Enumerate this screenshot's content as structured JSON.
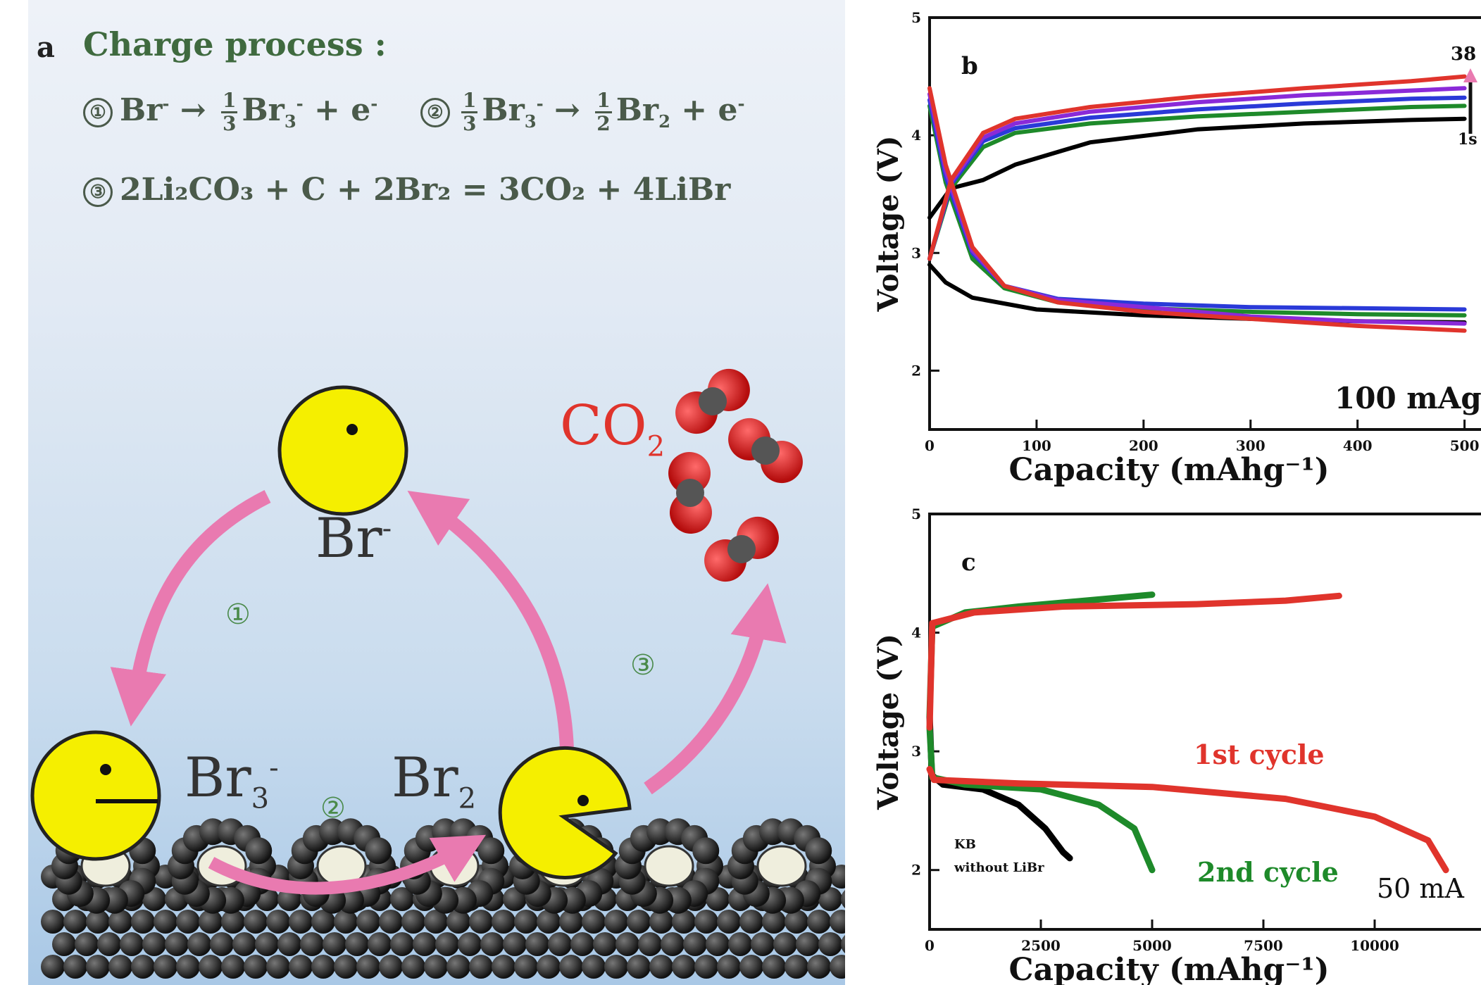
{
  "panel_a": {
    "letter": "a",
    "title": "Charge process :",
    "eq1_circle": "①",
    "eq1_lhs": "Br",
    "eq1_lhs_sup": "-",
    "eq1_arrow": "→",
    "eq1_frac_num": "1",
    "eq1_frac_den": "3",
    "eq1_prod": "Br",
    "eq1_prod_sub": "3",
    "eq1_prod_sup": "-",
    "eq1_plus": "+",
    "eq1_e": "e",
    "eq1_e_sup": "-",
    "eq2_circle": "②",
    "eq2_frac1_num": "1",
    "eq2_frac1_den": "3",
    "eq2_lhs": "Br",
    "eq2_lhs_sub": "3",
    "eq2_lhs_sup": "-",
    "eq2_arrow": "→",
    "eq2_frac2_num": "1",
    "eq2_frac2_den": "2",
    "eq2_prod": "Br",
    "eq2_prod_sub": "2",
    "eq2_plus": "+",
    "eq2_e": "e",
    "eq2_e_sup": "-",
    "eq3_circle": "③",
    "eq3_text": "2Li₂CO₃ + C + 2Br₂ = 3CO₂ + 4LiBr",
    "label_br": "Br",
    "label_br_sup": "-",
    "label_br3": "Br",
    "label_br3_sub": "3",
    "label_br3_sup": "-",
    "label_br2": "Br",
    "label_br2_sub": "2",
    "label_co2": "CO",
    "label_co2_sub": "2",
    "step1": "①",
    "step2": "②",
    "step3": "③",
    "colors": {
      "pacman": "#f5ef00",
      "arrow": "#e97ab0",
      "co2_label": "#e0342c",
      "step": "#4a8a4a"
    }
  },
  "chart_data": [
    {
      "panel": "b",
      "type": "line",
      "xlabel": "Capacity (mAhg⁻¹)",
      "ylabel": "Voltage (V)",
      "xlim": [
        0,
        520
      ],
      "ylim": [
        1.5,
        5
      ],
      "xticks": [
        "0",
        "100",
        "200",
        "300",
        "400",
        "500"
      ],
      "yticks": [
        "2",
        "3",
        "4",
        "5"
      ],
      "annotation": "100 mAg",
      "legend_top": "38",
      "legend_bottom": "1s",
      "series": [
        {
          "color": "#000000",
          "charge": [
            [
              0,
              3.3
            ],
            [
              20,
              3.55
            ],
            [
              50,
              3.62
            ],
            [
              80,
              3.75
            ],
            [
              150,
              3.94
            ],
            [
              250,
              4.05
            ],
            [
              350,
              4.1
            ],
            [
              450,
              4.13
            ],
            [
              500,
              4.14
            ]
          ],
          "discharge": [
            [
              0,
              2.9
            ],
            [
              15,
              2.75
            ],
            [
              40,
              2.62
            ],
            [
              100,
              2.52
            ],
            [
              200,
              2.47
            ],
            [
              300,
              2.44
            ],
            [
              400,
              2.42
            ],
            [
              500,
              2.41
            ]
          ]
        },
        {
          "color": "#1e8a2a",
          "charge": [
            [
              0,
              2.95
            ],
            [
              20,
              3.55
            ],
            [
              50,
              3.9
            ],
            [
              80,
              4.02
            ],
            [
              150,
              4.1
            ],
            [
              250,
              4.16
            ],
            [
              350,
              4.2
            ],
            [
              450,
              4.24
            ],
            [
              500,
              4.25
            ]
          ],
          "discharge": [
            [
              0,
              4.25
            ],
            [
              15,
              3.6
            ],
            [
              40,
              2.95
            ],
            [
              70,
              2.7
            ],
            [
              120,
              2.58
            ],
            [
              200,
              2.53
            ],
            [
              300,
              2.5
            ],
            [
              400,
              2.48
            ],
            [
              500,
              2.47
            ]
          ]
        },
        {
          "color": "#2a3ad8",
          "charge": [
            [
              0,
              2.95
            ],
            [
              20,
              3.58
            ],
            [
              50,
              3.95
            ],
            [
              80,
              4.06
            ],
            [
              150,
              4.15
            ],
            [
              250,
              4.22
            ],
            [
              350,
              4.27
            ],
            [
              450,
              4.31
            ],
            [
              500,
              4.32
            ]
          ],
          "discharge": [
            [
              0,
              4.3
            ],
            [
              15,
              3.65
            ],
            [
              40,
              3.0
            ],
            [
              70,
              2.72
            ],
            [
              120,
              2.61
            ],
            [
              200,
              2.57
            ],
            [
              300,
              2.54
            ],
            [
              400,
              2.53
            ],
            [
              500,
              2.52
            ]
          ]
        },
        {
          "color": "#8a2ad8",
          "charge": [
            [
              0,
              2.95
            ],
            [
              20,
              3.6
            ],
            [
              50,
              3.98
            ],
            [
              80,
              4.1
            ],
            [
              150,
              4.2
            ],
            [
              250,
              4.28
            ],
            [
              350,
              4.34
            ],
            [
              450,
              4.38
            ],
            [
              500,
              4.4
            ]
          ],
          "discharge": [
            [
              0,
              4.35
            ],
            [
              15,
              3.7
            ],
            [
              40,
              3.02
            ],
            [
              70,
              2.72
            ],
            [
              120,
              2.6
            ],
            [
              200,
              2.54
            ],
            [
              300,
              2.46
            ],
            [
              400,
              2.42
            ],
            [
              500,
              2.4
            ]
          ]
        },
        {
          "color": "#e0342c",
          "charge": [
            [
              0,
              2.95
            ],
            [
              20,
              3.62
            ],
            [
              50,
              4.02
            ],
            [
              80,
              4.14
            ],
            [
              150,
              4.24
            ],
            [
              250,
              4.33
            ],
            [
              350,
              4.4
            ],
            [
              450,
              4.46
            ],
            [
              500,
              4.5
            ]
          ],
          "discharge": [
            [
              0,
              4.4
            ],
            [
              15,
              3.75
            ],
            [
              40,
              3.05
            ],
            [
              70,
              2.72
            ],
            [
              120,
              2.58
            ],
            [
              200,
              2.5
            ],
            [
              300,
              2.44
            ],
            [
              400,
              2.38
            ],
            [
              500,
              2.34
            ]
          ]
        }
      ]
    },
    {
      "panel": "c",
      "type": "line",
      "xlabel": "Capacity (mAhg⁻¹)",
      "ylabel": "Voltage (V)",
      "xlim": [
        0,
        12500
      ],
      "ylim": [
        1.5,
        5
      ],
      "xticks": [
        "0",
        "2500",
        "5000",
        "7500",
        "10000"
      ],
      "yticks": [
        "2",
        "3",
        "4",
        "5"
      ],
      "annotation": "50 mA",
      "series": [
        {
          "name": "KB without LiBr",
          "color": "#000000",
          "discharge": [
            [
              0,
              3.3
            ],
            [
              50,
              2.8
            ],
            [
              300,
              2.72
            ],
            [
              1200,
              2.68
            ],
            [
              2000,
              2.55
            ],
            [
              2600,
              2.35
            ],
            [
              3000,
              2.15
            ],
            [
              3150,
              2.1
            ]
          ]
        },
        {
          "name": "2nd cycle",
          "color": "#1e8a2a",
          "charge": [
            [
              0,
              3.3
            ],
            [
              60,
              4.05
            ],
            [
              800,
              4.17
            ],
            [
              2000,
              4.22
            ],
            [
              3500,
              4.27
            ],
            [
              5000,
              4.32
            ]
          ],
          "discharge": [
            [
              0,
              3.2
            ],
            [
              60,
              2.78
            ],
            [
              800,
              2.72
            ],
            [
              2500,
              2.68
            ],
            [
              3800,
              2.55
            ],
            [
              4600,
              2.35
            ],
            [
              5000,
              2.0
            ]
          ]
        },
        {
          "name": "1st cycle",
          "color": "#e0342c",
          "charge": [
            [
              0,
              3.2
            ],
            [
              60,
              4.08
            ],
            [
              1000,
              4.17
            ],
            [
              3000,
              4.22
            ],
            [
              6000,
              4.24
            ],
            [
              8000,
              4.27
            ],
            [
              9200,
              4.31
            ]
          ],
          "discharge": [
            [
              0,
              2.85
            ],
            [
              100,
              2.76
            ],
            [
              2000,
              2.73
            ],
            [
              5000,
              2.7
            ],
            [
              8000,
              2.6
            ],
            [
              10000,
              2.45
            ],
            [
              11200,
              2.25
            ],
            [
              11600,
              2.0
            ]
          ]
        }
      ],
      "labels": {
        "first": "1st cycle",
        "second": "2nd cycle",
        "kb1": "KB",
        "kb2": "without LiBr"
      }
    }
  ]
}
